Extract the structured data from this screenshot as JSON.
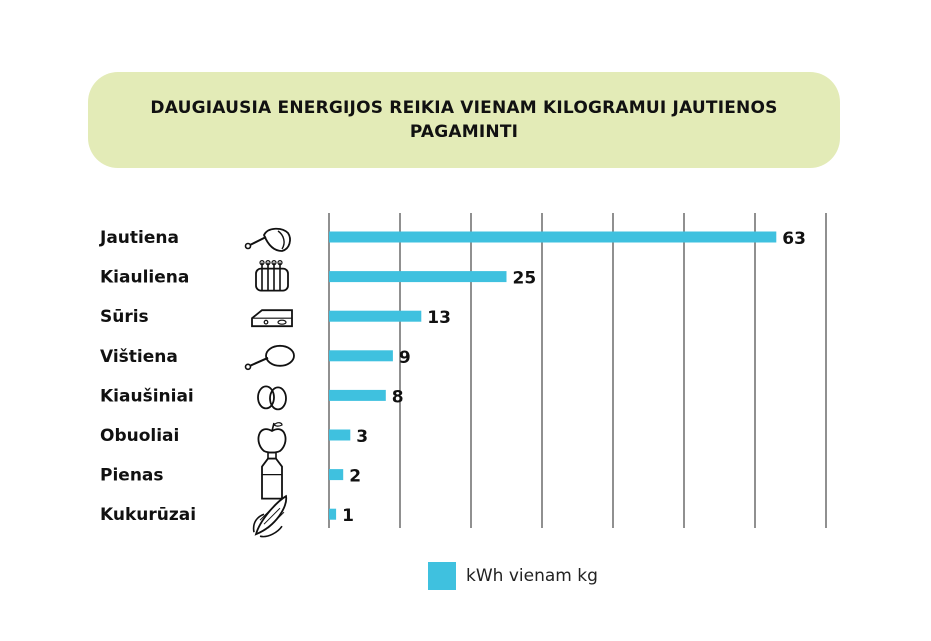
{
  "chart_data": {
    "type": "bar",
    "orientation": "horizontal",
    "title": "DAUGIAUSIA ENERGIJOS REIKIA VIENAM KILOGRAMUI JAUTIENOS PAGAMINTI",
    "categories": [
      "Jautiena",
      "Kiauliena",
      "Sūris",
      "Vištiena",
      "Kiaušiniai",
      "Obuoliai",
      "Pienas",
      "Kukurūzai"
    ],
    "category_icons": [
      "ham-icon",
      "ribs-icon",
      "cheese-icon",
      "drumstick-icon",
      "eggs-icon",
      "apple-icon",
      "milk-bottle-icon",
      "corn-icon"
    ],
    "series": [
      {
        "name": "kWh vienam kg",
        "values": [
          63,
          25,
          13,
          9,
          8,
          3,
          2,
          1
        ],
        "color": "#3fc1df"
      }
    ],
    "xlim": [
      0,
      70
    ],
    "grid": "vertical",
    "legend_position": "bottom"
  }
}
